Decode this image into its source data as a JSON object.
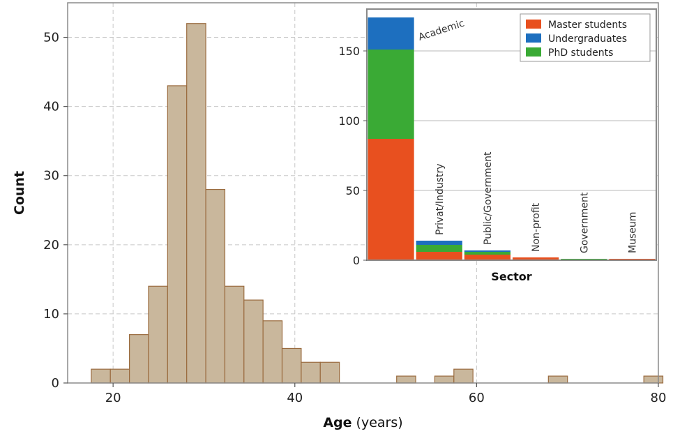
{
  "chart_data": [
    {
      "type": "bar",
      "xlabel": "Age",
      "xlabel_unit": "(years)",
      "ylabel": "Count",
      "xlim": [
        15,
        80
      ],
      "ylim": [
        0,
        55
      ],
      "xticks": [
        20,
        40,
        60,
        80
      ],
      "yticks": [
        0,
        10,
        20,
        30,
        40,
        50
      ],
      "grid": true,
      "bar_color": "#c9b79c",
      "bar_edge_color": "#9a6b3f",
      "bin_width": 2.1,
      "bins": [
        {
          "start": 17.6,
          "value": 2
        },
        {
          "start": 19.7,
          "value": 2
        },
        {
          "start": 21.8,
          "value": 7
        },
        {
          "start": 23.9,
          "value": 14
        },
        {
          "start": 26.0,
          "value": 43
        },
        {
          "start": 28.1,
          "value": 52
        },
        {
          "start": 30.2,
          "value": 28
        },
        {
          "start": 32.3,
          "value": 14
        },
        {
          "start": 34.4,
          "value": 12
        },
        {
          "start": 36.5,
          "value": 9
        },
        {
          "start": 38.6,
          "value": 5
        },
        {
          "start": 40.7,
          "value": 3
        },
        {
          "start": 42.8,
          "value": 3
        },
        {
          "start": 51.2,
          "value": 1
        },
        {
          "start": 55.4,
          "value": 1
        },
        {
          "start": 57.5,
          "value": 2
        },
        {
          "start": 67.9,
          "value": 1
        },
        {
          "start": 78.4,
          "value": 1
        }
      ]
    },
    {
      "type": "bar",
      "stacked": true,
      "xlabel": "Sector",
      "ylabel": "",
      "ylim": [
        0,
        180
      ],
      "yticks": [
        0,
        50,
        100,
        150
      ],
      "grid": true,
      "legend_position": "top-right",
      "categories": [
        "Academic",
        "Privat/Industry",
        "Public/Government",
        "Non-profit",
        "Government",
        "Museum"
      ],
      "series": [
        {
          "name": "Master students",
          "color": "#e8501f",
          "values": [
            87,
            6,
            4,
            2,
            0,
            1
          ]
        },
        {
          "name": "PhD students",
          "color": "#3aaa35",
          "values": [
            64,
            5,
            2,
            0,
            1,
            0
          ]
        },
        {
          "name": "Undergraduates",
          "color": "#1d6fbf",
          "values": [
            23,
            3,
            1,
            0,
            0,
            0
          ]
        }
      ],
      "legend_order": [
        "Master students",
        "Undergraduates",
        "PhD students"
      ]
    }
  ]
}
